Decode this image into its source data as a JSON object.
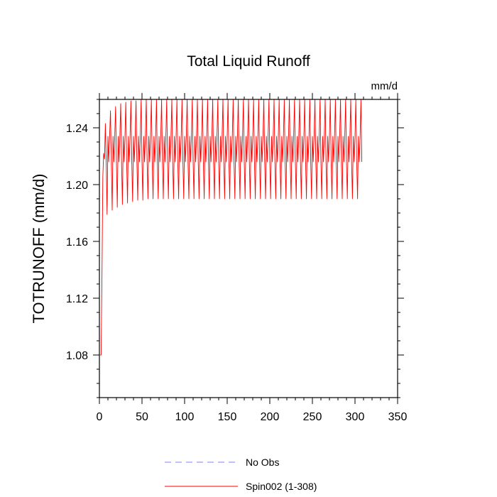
{
  "chart_data": {
    "type": "line",
    "title": "Total Liquid Runoff",
    "units_label": "mm/d",
    "xlabel": "",
    "ylabel": "TOTRUNOFF  (mm/d)",
    "xlim": [
      0,
      350
    ],
    "ylim": [
      1.05,
      1.26
    ],
    "x_ticks": [
      0,
      50,
      100,
      150,
      200,
      250,
      300,
      350
    ],
    "y_ticks": [
      1.08,
      1.12,
      1.16,
      1.2,
      1.24
    ],
    "y_tick_labels": [
      "1.08",
      "1.12",
      "1.16",
      "1.20",
      "1.24"
    ],
    "grid": false,
    "legend_position": "bottom",
    "series": [
      {
        "name": "No Obs",
        "color": "#8080ff",
        "style": "dashed",
        "x": [],
        "y": []
      },
      {
        "name": "Spin002 (1-308)",
        "color": "#ff0000",
        "style": "solid",
        "x_range": [
          1,
          308
        ],
        "period": 6,
        "annual_peak": [
          1.08,
          1.243,
          1.252,
          1.255,
          1.257,
          1.258,
          1.259,
          1.259,
          1.26,
          1.26,
          1.26,
          1.26,
          1.26,
          1.26,
          1.26,
          1.26,
          1.26,
          1.26,
          1.26,
          1.26,
          1.26,
          1.26,
          1.26,
          1.26,
          1.26,
          1.26,
          1.26,
          1.26,
          1.26,
          1.26,
          1.26,
          1.26,
          1.26,
          1.26,
          1.26,
          1.26,
          1.26,
          1.26,
          1.26,
          1.26,
          1.26,
          1.26,
          1.26,
          1.26,
          1.26,
          1.26,
          1.26,
          1.26,
          1.26,
          1.26,
          1.26,
          1.26
        ],
        "annual_trough": [
          1.08,
          1.179,
          1.182,
          1.184,
          1.186,
          1.187,
          1.188,
          1.189,
          1.189,
          1.19,
          1.19,
          1.19,
          1.19,
          1.19,
          1.19,
          1.19,
          1.19,
          1.19,
          1.19,
          1.19,
          1.19,
          1.19,
          1.19,
          1.19,
          1.19,
          1.19,
          1.19,
          1.19,
          1.19,
          1.19,
          1.19,
          1.19,
          1.19,
          1.19,
          1.19,
          1.19,
          1.19,
          1.19,
          1.19,
          1.19,
          1.19,
          1.19,
          1.19,
          1.19,
          1.19,
          1.19,
          1.19,
          1.19,
          1.19,
          1.19,
          1.19,
          1.19
        ],
        "annual_mid_high": 1.234,
        "annual_mid_low": 1.216
      }
    ]
  }
}
